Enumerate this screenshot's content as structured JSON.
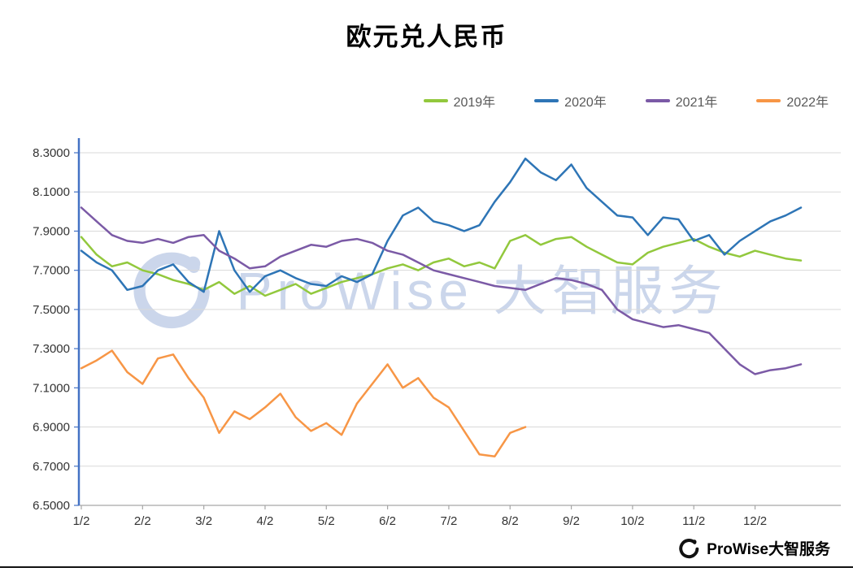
{
  "page": {
    "watermark": "ProWise 大智服务",
    "footer_brand": "ProWise大智服务"
  },
  "chart_data": {
    "type": "line",
    "title": "欧元兑人民币",
    "xlabel": "",
    "ylabel": "",
    "ylim": [
      6.5,
      8.3
    ],
    "y_ticks": [
      6.5,
      6.7,
      6.9,
      7.1,
      7.3,
      7.5,
      7.7,
      7.9,
      8.1,
      8.3
    ],
    "y_tick_labels": [
      "6.5000",
      "6.7000",
      "6.9000",
      "7.1000",
      "7.3000",
      "7.5000",
      "7.7000",
      "7.9000",
      "8.1000",
      "8.3000"
    ],
    "x_tick_labels": [
      "1/2",
      "2/2",
      "3/2",
      "4/2",
      "5/2",
      "6/2",
      "7/2",
      "8/2",
      "9/2",
      "10/2",
      "11/2",
      "12/2"
    ],
    "grid": "horizontal",
    "legend_position": "top-right",
    "axis_color": "#4472C4",
    "grid_color": "#D9D9D9",
    "series": [
      {
        "name": "2019年",
        "color": "#92C83D",
        "x_start": 0,
        "x_step": 0.25,
        "values": [
          7.87,
          7.78,
          7.72,
          7.74,
          7.7,
          7.68,
          7.65,
          7.63,
          7.6,
          7.64,
          7.58,
          7.62,
          7.57,
          7.6,
          7.63,
          7.58,
          7.61,
          7.64,
          7.66,
          7.68,
          7.71,
          7.73,
          7.7,
          7.74,
          7.76,
          7.72,
          7.74,
          7.71,
          7.85,
          7.88,
          7.83,
          7.86,
          7.87,
          7.82,
          7.78,
          7.74,
          7.73,
          7.79,
          7.82,
          7.84,
          7.86,
          7.82,
          7.79,
          7.77,
          7.8,
          7.78,
          7.76,
          7.75
        ]
      },
      {
        "name": "2020年",
        "color": "#2E75B6",
        "x_start": 0,
        "x_step": 0.25,
        "values": [
          7.8,
          7.74,
          7.7,
          7.6,
          7.62,
          7.7,
          7.73,
          7.64,
          7.59,
          7.9,
          7.7,
          7.59,
          7.67,
          7.7,
          7.66,
          7.63,
          7.62,
          7.67,
          7.64,
          7.68,
          7.85,
          7.98,
          8.02,
          7.95,
          7.93,
          7.9,
          7.93,
          8.05,
          8.15,
          8.27,
          8.2,
          8.16,
          8.24,
          8.12,
          8.05,
          7.98,
          7.97,
          7.88,
          7.97,
          7.96,
          7.85,
          7.88,
          7.78,
          7.85,
          7.9,
          7.95,
          7.98,
          8.02
        ]
      },
      {
        "name": "2021年",
        "color": "#7B5AA6",
        "x_start": 0,
        "x_step": 0.25,
        "values": [
          8.02,
          7.95,
          7.88,
          7.85,
          7.84,
          7.86,
          7.84,
          7.87,
          7.88,
          7.8,
          7.76,
          7.71,
          7.72,
          7.77,
          7.8,
          7.83,
          7.82,
          7.85,
          7.86,
          7.84,
          7.8,
          7.78,
          7.74,
          7.7,
          7.68,
          7.66,
          7.64,
          7.62,
          7.61,
          7.6,
          7.63,
          7.66,
          7.65,
          7.63,
          7.6,
          7.5,
          7.45,
          7.43,
          7.41,
          7.42,
          7.4,
          7.38,
          7.3,
          7.22,
          7.17,
          7.19,
          7.2,
          7.22
        ]
      },
      {
        "name": "2022年",
        "color": "#F79646",
        "x_start": 0,
        "x_step": 0.25,
        "values": [
          7.2,
          7.24,
          7.29,
          7.18,
          7.12,
          7.25,
          7.27,
          7.15,
          7.05,
          6.87,
          6.98,
          6.94,
          7.0,
          7.07,
          6.95,
          6.88,
          6.92,
          6.86,
          7.02,
          7.12,
          7.22,
          7.1,
          7.15,
          7.05,
          7.0,
          6.88,
          6.76,
          6.75,
          6.87,
          6.9
        ]
      }
    ]
  }
}
